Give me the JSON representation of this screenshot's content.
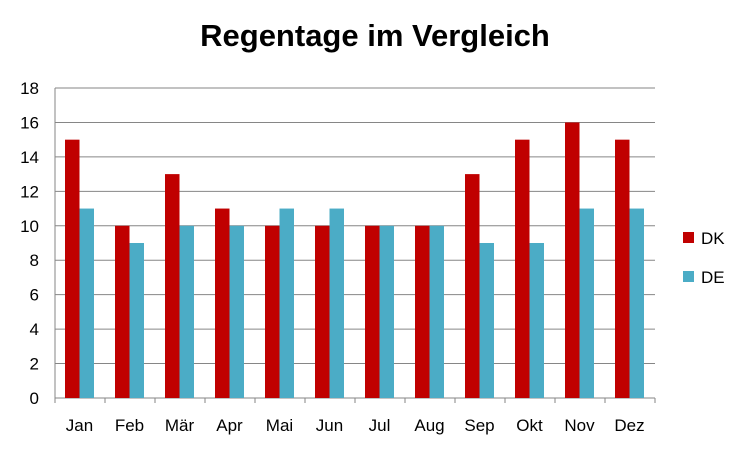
{
  "chart_data": {
    "type": "bar",
    "title": "Regentage im Vergleich",
    "categories": [
      "Jan",
      "Feb",
      "Mär",
      "Apr",
      "Mai",
      "Jun",
      "Jul",
      "Aug",
      "Sep",
      "Okt",
      "Nov",
      "Dez"
    ],
    "series": [
      {
        "name": "DK",
        "color": "#c00000",
        "values": [
          15,
          10,
          13,
          11,
          10,
          10,
          10,
          10,
          13,
          15,
          16,
          15
        ]
      },
      {
        "name": "DE",
        "color": "#4bacc6",
        "values": [
          11,
          9,
          10,
          10,
          11,
          11,
          10,
          10,
          9,
          9,
          11,
          11
        ]
      }
    ],
    "ylim": [
      0,
      18
    ],
    "yticks": [
      "0",
      "2",
      "4",
      "6",
      "8",
      "10",
      "12",
      "14",
      "16",
      "18"
    ],
    "grid": true,
    "legend": "right"
  }
}
